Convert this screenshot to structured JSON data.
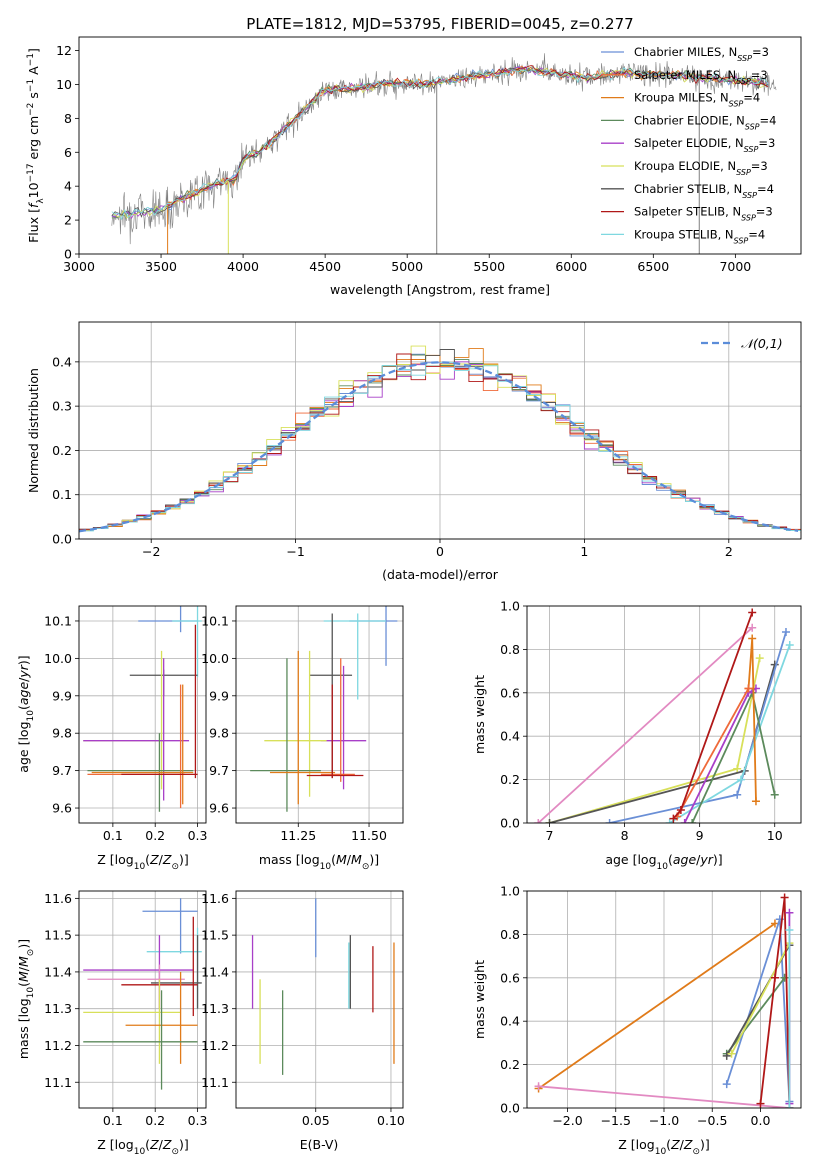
{
  "figure": {
    "title": "PLATE=1812, MJD=53795, FIBERID=0045, z=0.277"
  },
  "legend_entries": [
    {
      "name": "Chabrier MILES, N_SSP=3",
      "base": "Chabrier MILES, N",
      "sub": "SSP",
      "tail": "=3",
      "color": "#6a8fd6"
    },
    {
      "name": "Salpeter MILES, N_SSP=3",
      "base": "Salpeter MILES, N",
      "sub": "SSP",
      "tail": "=3",
      "color": "#ef6a3a"
    },
    {
      "name": "Kroupa MILES, N_SSP=4",
      "base": "Kroupa MILES, N",
      "sub": "SSP",
      "tail": "=4",
      "color": "#e07b1a"
    },
    {
      "name": "Chabrier ELODIE, N_SSP=4",
      "base": "Chabrier ELODIE, N",
      "sub": "SSP",
      "tail": "=4",
      "color": "#5c8a5c"
    },
    {
      "name": "Salpeter ELODIE, N_SSP=3",
      "base": "Salpeter ELODIE, N",
      "sub": "SSP",
      "tail": "=3",
      "color": "#a83fc8"
    },
    {
      "name": "Kroupa ELODIE, N_SSP=3",
      "base": "Kroupa ELODIE, N",
      "sub": "SSP",
      "tail": "=3",
      "color": "#d8e05a"
    },
    {
      "name": "Chabrier STELIB, N_SSP=4",
      "base": "Chabrier STELIB, N",
      "sub": "SSP",
      "tail": "=4",
      "color": "#555555"
    },
    {
      "name": "Salpeter STELIB, N_SSP=3",
      "base": "Salpeter STELIB, N",
      "sub": "SSP",
      "tail": "=3",
      "color": "#b01818"
    },
    {
      "name": "Kroupa STELIB, N_SSP=4",
      "base": "Kroupa STELIB, N",
      "sub": "SSP",
      "tail": "=4",
      "color": "#7fd8e0"
    }
  ],
  "chart_data": [
    {
      "id": "spectrum",
      "type": "line",
      "xlabel": "wavelength [Angstrom, rest frame]",
      "ylabel": "Flux [f_λ 10^-17 erg cm^-2 s^-1 A^-1]",
      "xlim": [
        3000,
        7400
      ],
      "ylim": [
        0,
        12.8
      ],
      "xticks": [
        3000,
        3500,
        4000,
        4500,
        5000,
        5500,
        6000,
        6500,
        7000
      ],
      "yticks": [
        0,
        2,
        4,
        6,
        8,
        10,
        12
      ],
      "grid": false,
      "legend_position": "right",
      "data_color": "#808080",
      "data_start_x": 3200,
      "data_end_x": 7250,
      "continuum": [
        [
          3200,
          2.3
        ],
        [
          3500,
          2.6
        ],
        [
          3700,
          3.6
        ],
        [
          3850,
          4.2
        ],
        [
          3950,
          4.4
        ],
        [
          4000,
          5.6
        ],
        [
          4100,
          6.0
        ],
        [
          4300,
          7.8
        ],
        [
          4500,
          9.7
        ],
        [
          4700,
          9.8
        ],
        [
          4900,
          10.1
        ],
        [
          5100,
          10.0
        ],
        [
          5300,
          10.3
        ],
        [
          5500,
          10.6
        ],
        [
          5700,
          10.9
        ],
        [
          5900,
          10.7
        ],
        [
          6100,
          10.4
        ],
        [
          6300,
          10.7
        ],
        [
          6500,
          10.6
        ],
        [
          6700,
          10.5
        ],
        [
          6900,
          10.3
        ],
        [
          7100,
          10.2
        ],
        [
          7250,
          10.0
        ]
      ]
    },
    {
      "id": "residuals",
      "type": "histogram",
      "xlabel": "(data-model)/error",
      "ylabel": "Normed distribution",
      "xlim": [
        -2.5,
        2.5
      ],
      "ylim": [
        0,
        0.49
      ],
      "xticks": [
        -2,
        -1,
        0,
        1,
        2
      ],
      "yticks": [
        0.0,
        0.1,
        0.2,
        0.3,
        0.4
      ],
      "grid": true,
      "legend": "𝒩(0,1)",
      "legend_position": "top-right",
      "reference_color": "#5b8dd9",
      "bin_width": 0.1
    },
    {
      "id": "age-vs-Z",
      "type": "errorbar",
      "xlabel": "Z [log10(Z/Z⊙)]",
      "ylabel": "age [log10(age/yr)]",
      "xlim": [
        0.02,
        0.32
      ],
      "ylim": [
        9.56,
        10.14
      ],
      "xticks": [
        0.1,
        0.2,
        0.3
      ],
      "yticks": [
        9.6,
        9.7,
        9.8,
        9.9,
        10.0,
        10.1
      ],
      "grid": true,
      "points": [
        {
          "color": "#6a8fd6",
          "x": 0.26,
          "xerr": [
            0.16,
            0.3
          ],
          "y": 10.1,
          "yerr": [
            10.07,
            10.15
          ]
        },
        {
          "color": "#7fd8e0",
          "x": 0.3,
          "xerr": [
            0.24,
            0.31
          ],
          "y": 10.1,
          "yerr": [
            9.95,
            10.15
          ]
        },
        {
          "color": "#555555",
          "x": 0.22,
          "xerr": [
            0.14,
            0.3
          ],
          "y": 9.955,
          "yerr": [
            9.9,
            9.97
          ]
        },
        {
          "color": "#d8e05a",
          "x": 0.215,
          "xerr": [
            0.03,
            0.22
          ],
          "y": 9.78,
          "yerr": [
            9.65,
            10.02
          ]
        },
        {
          "color": "#a83fc8",
          "x": 0.22,
          "xerr": [
            0.03,
            0.28
          ],
          "y": 9.78,
          "yerr": [
            9.62,
            10.0
          ]
        },
        {
          "color": "#5c8a5c",
          "x": 0.21,
          "xerr": [
            0.04,
            0.29
          ],
          "y": 9.7,
          "yerr": [
            9.59,
            9.8
          ]
        },
        {
          "color": "#ef6a3a",
          "x": 0.26,
          "xerr": [
            0.04,
            0.27
          ],
          "y": 9.69,
          "yerr": [
            9.6,
            9.93
          ]
        },
        {
          "color": "#e07b1a",
          "x": 0.265,
          "xerr": [
            0.05,
            0.29
          ],
          "y": 9.695,
          "yerr": [
            9.61,
            9.93
          ]
        },
        {
          "color": "#b01818",
          "x": 0.295,
          "xerr": [
            0.12,
            0.3
          ],
          "y": 9.69,
          "yerr": [
            9.68,
            10.09
          ]
        }
      ]
    },
    {
      "id": "age-vs-mass",
      "type": "errorbar",
      "xlabel": "mass [log10(M/M⊙)]",
      "ylabel": "",
      "xlim": [
        11.03,
        11.62
      ],
      "ylim": [
        9.56,
        10.14
      ],
      "xticks": [
        11.25,
        11.5
      ],
      "xtick_labels": [
        "11.25",
        "11.50"
      ],
      "yticks": [
        9.6,
        9.7,
        9.8,
        9.9,
        10.0,
        10.1
      ],
      "grid": true,
      "points": [
        {
          "color": "#6a8fd6",
          "x": 11.56,
          "xerr": [
            11.43,
            11.6
          ],
          "y": 10.1,
          "yerr": [
            9.98,
            10.15
          ]
        },
        {
          "color": "#7fd8e0",
          "x": 11.46,
          "xerr": [
            11.34,
            11.56
          ],
          "y": 10.1,
          "yerr": [
            9.89,
            10.12
          ]
        },
        {
          "color": "#555555",
          "x": 11.37,
          "xerr": [
            11.29,
            11.44
          ],
          "y": 9.955,
          "yerr": [
            9.68,
            10.12
          ]
        },
        {
          "color": "#a83fc8",
          "x": 11.41,
          "xerr": [
            11.33,
            11.49
          ],
          "y": 9.78,
          "yerr": [
            9.65,
            9.98
          ]
        },
        {
          "color": "#d8e05a",
          "x": 11.29,
          "xerr": [
            11.13,
            11.35
          ],
          "y": 9.78,
          "yerr": [
            9.63,
            10.02
          ]
        },
        {
          "color": "#5c8a5c",
          "x": 11.21,
          "xerr": [
            11.08,
            11.33
          ],
          "y": 9.7,
          "yerr": [
            9.59,
            10.0
          ]
        },
        {
          "color": "#e07b1a",
          "x": 11.25,
          "xerr": [
            11.15,
            11.38
          ],
          "y": 9.695,
          "yerr": [
            9.61,
            10.02
          ]
        },
        {
          "color": "#ef6a3a",
          "x": 11.4,
          "xerr": [
            11.33,
            11.45
          ],
          "y": 9.69,
          "yerr": [
            9.67,
            10.0
          ]
        },
        {
          "color": "#b01818",
          "x": 11.37,
          "xerr": [
            11.28,
            11.48
          ],
          "y": 9.687,
          "yerr": [
            9.68,
            9.93
          ]
        }
      ]
    },
    {
      "id": "mass-weight-vs-age",
      "type": "line",
      "xlabel": "age [log10(age/yr)]",
      "ylabel": "mass weight",
      "xlim": [
        6.7,
        10.35
      ],
      "ylim": [
        0,
        1.0
      ],
      "xticks": [
        7,
        8,
        9,
        10
      ],
      "yticks": [
        0.0,
        0.2,
        0.4,
        0.6,
        0.8,
        1.0
      ],
      "grid": true,
      "series": [
        {
          "color": "#e28ac2",
          "x": [
            6.85,
            9.7
          ],
          "y": [
            0.0,
            0.9
          ]
        },
        {
          "color": "#d8e05a",
          "x": [
            7.0,
            9.5,
            9.8
          ],
          "y": [
            0.0,
            0.25,
            0.76
          ]
        },
        {
          "color": "#555555",
          "x": [
            7.0,
            9.6,
            10.0
          ],
          "y": [
            0.0,
            0.24,
            0.73
          ]
        },
        {
          "color": "#6a8fd6",
          "x": [
            7.8,
            9.5,
            10.15
          ],
          "y": [
            0.0,
            0.13,
            0.88
          ]
        },
        {
          "color": "#7fd8e0",
          "x": [
            8.6,
            9.55,
            10.2
          ],
          "y": [
            0.0,
            0.2,
            0.82
          ]
        },
        {
          "color": "#5c8a5c",
          "x": [
            8.9,
            9.7,
            10.0
          ],
          "y": [
            0.0,
            0.6,
            0.13
          ]
        },
        {
          "color": "#a83fc8",
          "x": [
            8.8,
            9.65,
            9.75
          ],
          "y": [
            0.0,
            0.6,
            0.62
          ]
        },
        {
          "color": "#e07b1a",
          "x": [
            9.65,
            9.7,
            9.75
          ],
          "y": [
            0.62,
            0.85,
            0.1
          ]
        },
        {
          "color": "#ef6a3a",
          "x": [
            8.7,
            9.65
          ],
          "y": [
            0.03,
            0.62
          ]
        },
        {
          "color": "#b01818",
          "x": [
            8.65,
            8.75,
            9.7
          ],
          "y": [
            0.02,
            0.06,
            0.97
          ]
        }
      ]
    },
    {
      "id": "mass-vs-Z",
      "type": "errorbar",
      "xlabel": "Z [log10(Z/Z⊙)]",
      "ylabel": "mass [log10(M/M⊙)]",
      "xlim": [
        0.02,
        0.32
      ],
      "ylim": [
        11.03,
        11.62
      ],
      "xticks": [
        0.1,
        0.2,
        0.3
      ],
      "yticks": [
        11.1,
        11.2,
        11.3,
        11.4,
        11.5,
        11.6
      ],
      "grid": true,
      "points": [
        {
          "color": "#6a8fd6",
          "x": 0.26,
          "xerr": [
            0.17,
            0.3
          ],
          "y": 11.565,
          "yerr": [
            11.45,
            11.6
          ]
        },
        {
          "color": "#7fd8e0",
          "x": 0.3,
          "xerr": [
            0.18,
            0.31
          ],
          "y": 11.455,
          "yerr": [
            11.3,
            11.52
          ]
        },
        {
          "color": "#555555",
          "x": 0.3,
          "xerr": [
            0.19,
            0.31
          ],
          "y": 11.37,
          "yerr": [
            11.3,
            11.5
          ]
        },
        {
          "color": "#a83fc8",
          "x": 0.21,
          "xerr": [
            0.03,
            0.29
          ],
          "y": 11.405,
          "yerr": [
            11.3,
            11.5
          ]
        },
        {
          "color": "#e28ac2",
          "x": 0.21,
          "xerr": [
            0.04,
            0.27
          ],
          "y": 11.38,
          "yerr": [
            11.3,
            11.42
          ]
        },
        {
          "color": "#b01818",
          "x": 0.29,
          "xerr": [
            0.12,
            0.3
          ],
          "y": 11.365,
          "yerr": [
            11.28,
            11.55
          ]
        },
        {
          "color": "#d8e05a",
          "x": 0.21,
          "xerr": [
            0.03,
            0.26
          ],
          "y": 11.29,
          "yerr": [
            11.15,
            11.38
          ]
        },
        {
          "color": "#e07b1a",
          "x": 0.26,
          "xerr": [
            0.13,
            0.3
          ],
          "y": 11.255,
          "yerr": [
            11.15,
            11.4
          ]
        },
        {
          "color": "#5c8a5c",
          "x": 0.215,
          "xerr": [
            0.03,
            0.3
          ],
          "y": 11.21,
          "yerr": [
            11.08,
            11.35
          ]
        }
      ]
    },
    {
      "id": "mass-vs-EBV",
      "type": "errorbar",
      "xlabel": "E(B-V)",
      "ylabel": "",
      "xlim": [
        -0.003,
        0.108
      ],
      "ylim": [
        11.03,
        11.62
      ],
      "xticks": [
        0.05,
        0.1
      ],
      "xtick_labels": [
        "0.05",
        "0.10"
      ],
      "yticks": [
        11.1,
        11.2,
        11.3,
        11.4,
        11.5,
        11.6
      ],
      "grid": true,
      "points": [
        {
          "color": "#6a8fd6",
          "x": 0.05,
          "y": 11.52,
          "yerr": [
            11.44,
            11.6
          ]
        },
        {
          "color": "#a83fc8",
          "x": 0.008,
          "y": 11.4,
          "yerr": [
            11.3,
            11.5
          ]
        },
        {
          "color": "#555555",
          "x": 0.073,
          "y": 11.4,
          "yerr": [
            11.3,
            11.5
          ]
        },
        {
          "color": "#7fd8e0",
          "x": 0.072,
          "y": 11.4,
          "yerr": [
            11.3,
            11.48
          ]
        },
        {
          "color": "#b01818",
          "x": 0.088,
          "y": 11.38,
          "yerr": [
            11.29,
            11.47
          ]
        },
        {
          "color": "#d8e05a",
          "x": 0.013,
          "y": 11.27,
          "yerr": [
            11.15,
            11.38
          ]
        },
        {
          "color": "#5c8a5c",
          "x": 0.028,
          "y": 11.25,
          "yerr": [
            11.12,
            11.35
          ]
        },
        {
          "color": "#e07b1a",
          "x": 0.102,
          "y": 11.3,
          "yerr": [
            11.15,
            11.48
          ]
        }
      ]
    },
    {
      "id": "mass-weight-vs-Z",
      "type": "line",
      "xlabel": "Z [log10(Z/Z⊙)]",
      "ylabel": "mass weight",
      "xlim": [
        -2.42,
        0.42
      ],
      "ylim": [
        0,
        1.0
      ],
      "xticks": [
        -2.0,
        -1.5,
        -1.0,
        -0.5,
        0.0
      ],
      "yticks": [
        0.0,
        0.2,
        0.4,
        0.6,
        0.8,
        1.0
      ],
      "grid": true,
      "series": [
        {
          "color": "#e07b1a",
          "x": [
            -2.3,
            0.15
          ],
          "y": [
            0.09,
            0.85
          ]
        },
        {
          "color": "#e28ac2",
          "x": [
            -2.3,
            0.3
          ],
          "y": [
            0.1,
            0.0
          ]
        },
        {
          "color": "#6a8fd6",
          "x": [
            -0.35,
            0.2,
            0.3
          ],
          "y": [
            0.11,
            0.87,
            0.03
          ]
        },
        {
          "color": "#5c8a5c",
          "x": [
            -0.35,
            0.25
          ],
          "y": [
            0.25,
            0.6
          ]
        },
        {
          "color": "#555555",
          "x": [
            -0.35,
            0.3
          ],
          "y": [
            0.24,
            0.75
          ]
        },
        {
          "color": "#d8e05a",
          "x": [
            -0.3,
            0.3
          ],
          "y": [
            0.25,
            0.76
          ]
        },
        {
          "color": "#b01818",
          "x": [
            0.0,
            0.15,
            0.25,
            0.3
          ],
          "y": [
            0.02,
            0.6,
            0.97,
            0.0
          ]
        },
        {
          "color": "#a83fc8",
          "x": [
            0.3,
            0.3
          ],
          "y": [
            0.02,
            0.9
          ]
        },
        {
          "color": "#7fd8e0",
          "x": [
            0.3,
            0.3
          ],
          "y": [
            0.0,
            0.82
          ]
        }
      ]
    }
  ]
}
